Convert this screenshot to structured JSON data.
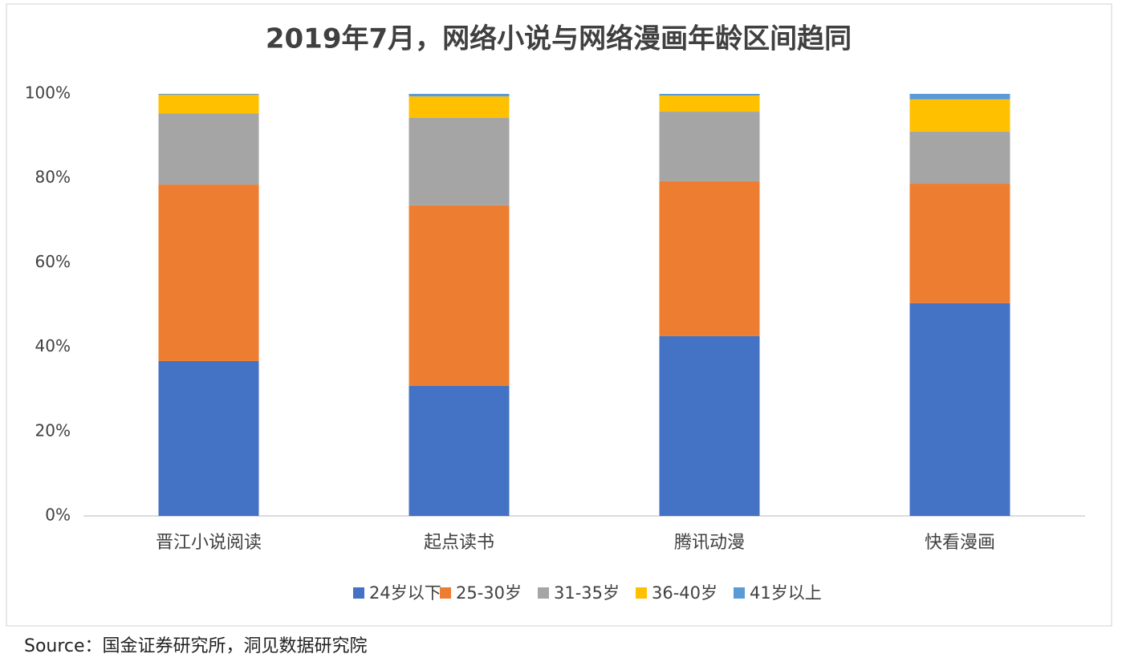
{
  "chart_data": {
    "type": "stacked_bar",
    "title": "2019年7月，网络小说与网络漫画年龄区间趋同",
    "categories": [
      "晋江小说阅读",
      "起点读书",
      "腾讯动漫",
      "快看漫画"
    ],
    "series": [
      {
        "name": "24岁以下",
        "color": "#4472c4",
        "values": [
          36.7,
          30.8,
          42.6,
          50.4
        ]
      },
      {
        "name": "25-30岁",
        "color": "#ed7d31",
        "values": [
          41.8,
          42.8,
          36.7,
          28.3
        ]
      },
      {
        "name": "31-35岁",
        "color": "#a5a5a5",
        "values": [
          16.9,
          20.7,
          16.5,
          12.4
        ]
      },
      {
        "name": "36-40岁",
        "color": "#ffc000",
        "values": [
          4.4,
          5.1,
          3.8,
          7.6
        ]
      },
      {
        "name": "41岁以上",
        "color": "#5b9bd5",
        "values": [
          0.2,
          0.6,
          0.4,
          1.3
        ]
      }
    ],
    "ylim": [
      0,
      100
    ],
    "yticks": [
      {
        "value": 0,
        "label": "0%"
      },
      {
        "value": 20,
        "label": "20%"
      },
      {
        "value": 40,
        "label": "40%"
      },
      {
        "value": 60,
        "label": "60%"
      },
      {
        "value": 80,
        "label": "80%"
      },
      {
        "value": 100,
        "label": "100%"
      }
    ],
    "legend": "bottom",
    "source": "Source：国金证券研究所，洞见数据研究院"
  }
}
